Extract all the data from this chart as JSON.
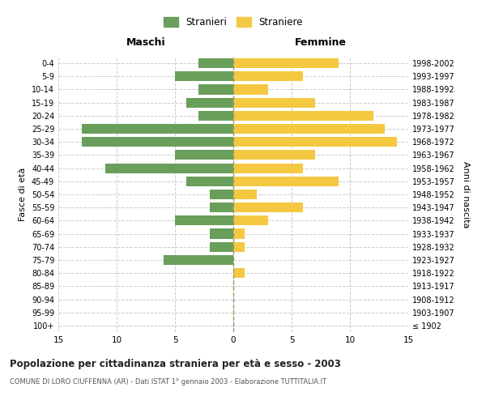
{
  "age_groups": [
    "100+",
    "95-99",
    "90-94",
    "85-89",
    "80-84",
    "75-79",
    "70-74",
    "65-69",
    "60-64",
    "55-59",
    "50-54",
    "45-49",
    "40-44",
    "35-39",
    "30-34",
    "25-29",
    "20-24",
    "15-19",
    "10-14",
    "5-9",
    "0-4"
  ],
  "birth_years": [
    "≤ 1902",
    "1903-1907",
    "1908-1912",
    "1913-1917",
    "1918-1922",
    "1923-1927",
    "1928-1932",
    "1933-1937",
    "1938-1942",
    "1943-1947",
    "1948-1952",
    "1953-1957",
    "1958-1962",
    "1963-1967",
    "1968-1972",
    "1973-1977",
    "1978-1982",
    "1983-1987",
    "1988-1992",
    "1993-1997",
    "1998-2002"
  ],
  "males": [
    0,
    0,
    0,
    0,
    0,
    6,
    2,
    2,
    5,
    2,
    2,
    4,
    11,
    5,
    13,
    13,
    3,
    4,
    3,
    5,
    3
  ],
  "females": [
    0,
    0,
    0,
    0,
    1,
    0,
    1,
    1,
    3,
    6,
    2,
    9,
    6,
    7,
    14,
    13,
    12,
    7,
    3,
    6,
    9
  ],
  "male_color": "#6a9e5b",
  "female_color": "#f5c842",
  "title": "Popolazione per cittadinanza straniera per età e sesso - 2003",
  "subtitle": "COMUNE DI LORO CIUFFENNA (AR) - Dati ISTAT 1° gennaio 2003 - Elaborazione TUTTITALIA.IT",
  "xlabel_left": "Maschi",
  "xlabel_right": "Femmine",
  "ylabel_left": "Fasce di età",
  "ylabel_right": "Anni di nascita",
  "legend_male": "Stranieri",
  "legend_female": "Straniere",
  "xlim": 15,
  "background_color": "#ffffff",
  "grid_color": "#cccccc"
}
